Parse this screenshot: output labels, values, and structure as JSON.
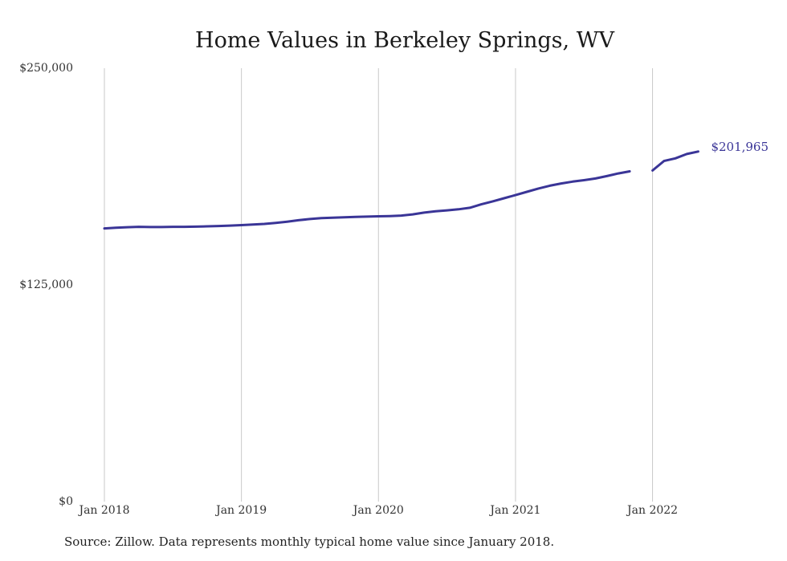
{
  "chart_data": {
    "type": "line",
    "title": "Home Values in Berkeley Springs, WV",
    "xlabel": "",
    "ylabel": "",
    "ylim": [
      0,
      250000
    ],
    "yticks": [
      0,
      125000,
      250000
    ],
    "ytick_labels": [
      "$0",
      "$125,000",
      "$250,000"
    ],
    "xticks": [
      "2018-01",
      "2019-01",
      "2020-01",
      "2021-01",
      "2022-01"
    ],
    "xtick_labels": [
      "Jan 2018",
      "Jan 2019",
      "Jan 2020",
      "Jan 2021",
      "Jan 2022"
    ],
    "grid": "vertical",
    "line_color": "#3a3597",
    "series": [
      {
        "x": [
          "2018-01",
          "2018-02",
          "2018-03",
          "2018-04",
          "2018-05",
          "2018-06",
          "2018-07",
          "2018-08",
          "2018-09",
          "2018-10",
          "2018-11",
          "2018-12",
          "2019-01",
          "2019-02",
          "2019-03",
          "2019-04",
          "2019-05",
          "2019-06",
          "2019-07",
          "2019-08",
          "2019-09",
          "2019-10",
          "2019-11",
          "2019-12",
          "2020-01",
          "2020-02",
          "2020-03",
          "2020-04",
          "2020-05",
          "2020-06",
          "2020-07",
          "2020-08",
          "2020-09",
          "2020-10",
          "2020-11",
          "2020-12",
          "2021-01",
          "2021-02",
          "2021-03",
          "2021-04",
          "2021-05",
          "2021-06",
          "2021-07",
          "2021-08",
          "2021-09",
          "2021-10",
          "2021-11"
        ],
        "values": [
          157600,
          158000,
          158300,
          158500,
          158400,
          158400,
          158500,
          158500,
          158600,
          158800,
          159000,
          159200,
          159500,
          159800,
          160200,
          160800,
          161500,
          162300,
          163000,
          163500,
          163800,
          164000,
          164200,
          164400,
          164600,
          164700,
          165000,
          165700,
          166700,
          167500,
          168000,
          168600,
          169500,
          171500,
          173200,
          175000,
          176800,
          178700,
          180600,
          182200,
          183500,
          184600,
          185400,
          186400,
          187800,
          189300,
          190500
        ]
      },
      {
        "x": [
          "2022-01",
          "2022-02",
          "2022-03",
          "2022-04",
          "2022-05"
        ],
        "values": [
          191000,
          196500,
          198000,
          200500,
          201965
        ]
      }
    ],
    "end_label": "$201,965"
  },
  "footer": {
    "source": "Source: Zillow. Data represents monthly typical home value since January 2018."
  }
}
